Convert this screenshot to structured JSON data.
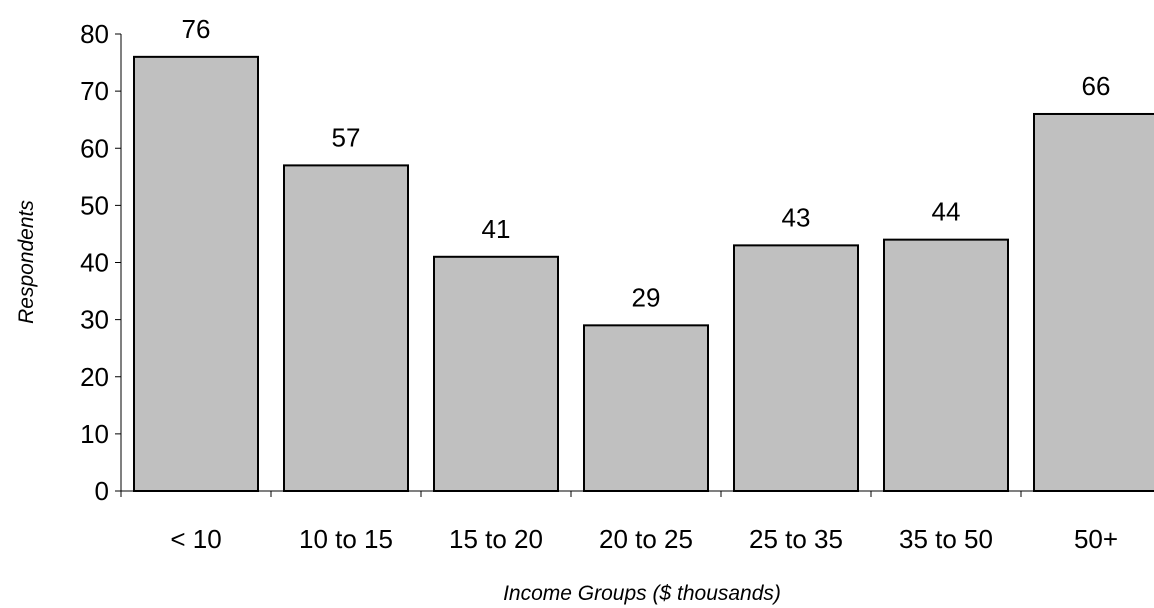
{
  "chart_data": {
    "type": "bar",
    "title": "",
    "xlabel": "Income Groups ($ thousands)",
    "ylabel": "Respondents",
    "categories": [
      "< 10",
      "10 to 15",
      "15 to 20",
      "20 to 25",
      "25 to 35",
      "35 to 50",
      "50+"
    ],
    "values": [
      76,
      57,
      41,
      29,
      43,
      44,
      66
    ],
    "data_labels": [
      "76",
      "57",
      "41",
      "29",
      "43",
      "44",
      "66"
    ],
    "ylim": [
      0,
      80
    ],
    "yticks": [
      "0",
      "10",
      "20",
      "30",
      "40",
      "50",
      "60",
      "70",
      "80"
    ],
    "grid": false,
    "legend": "none",
    "bar_color": "#c0c0c0"
  }
}
